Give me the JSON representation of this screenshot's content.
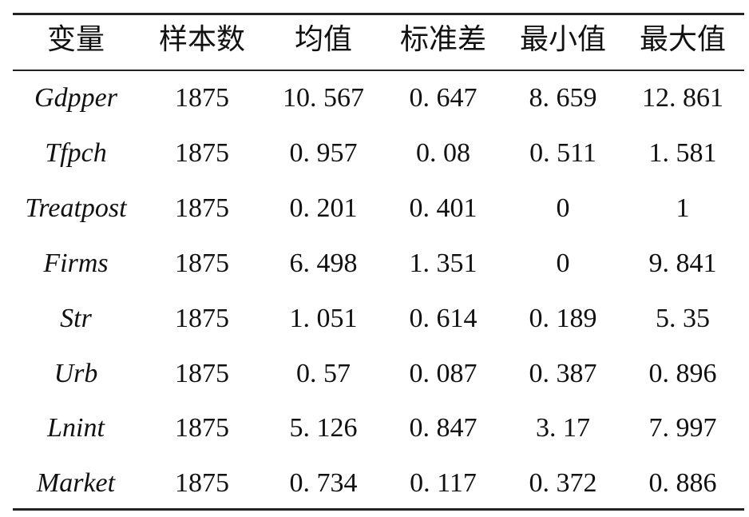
{
  "table": {
    "header": [
      "变量",
      "样本数",
      "均值",
      "标准差",
      "最小值",
      "最大值"
    ],
    "rows": [
      [
        "Gdpper",
        "1875",
        "10. 567",
        "0. 647",
        "8. 659",
        "12. 861"
      ],
      [
        "Tfpch",
        "1875",
        "0. 957",
        "0. 08",
        "0. 511",
        "1. 581"
      ],
      [
        "Treatpost",
        "1875",
        "0. 201",
        "0. 401",
        "0",
        "1"
      ],
      [
        "Firms",
        "1875",
        "6. 498",
        "1. 351",
        "0",
        "9. 841"
      ],
      [
        "Str",
        "1875",
        "1. 051",
        "0. 614",
        "0. 189",
        "5. 35"
      ],
      [
        "Urb",
        "1875",
        "0. 57",
        "0. 087",
        "0. 387",
        "0. 896"
      ],
      [
        "Lnint",
        "1875",
        "5. 126",
        "0. 847",
        "3. 17",
        "7. 997"
      ],
      [
        "Market",
        "1875",
        "0. 734",
        "0. 117",
        "0. 372",
        "0. 886"
      ]
    ]
  }
}
